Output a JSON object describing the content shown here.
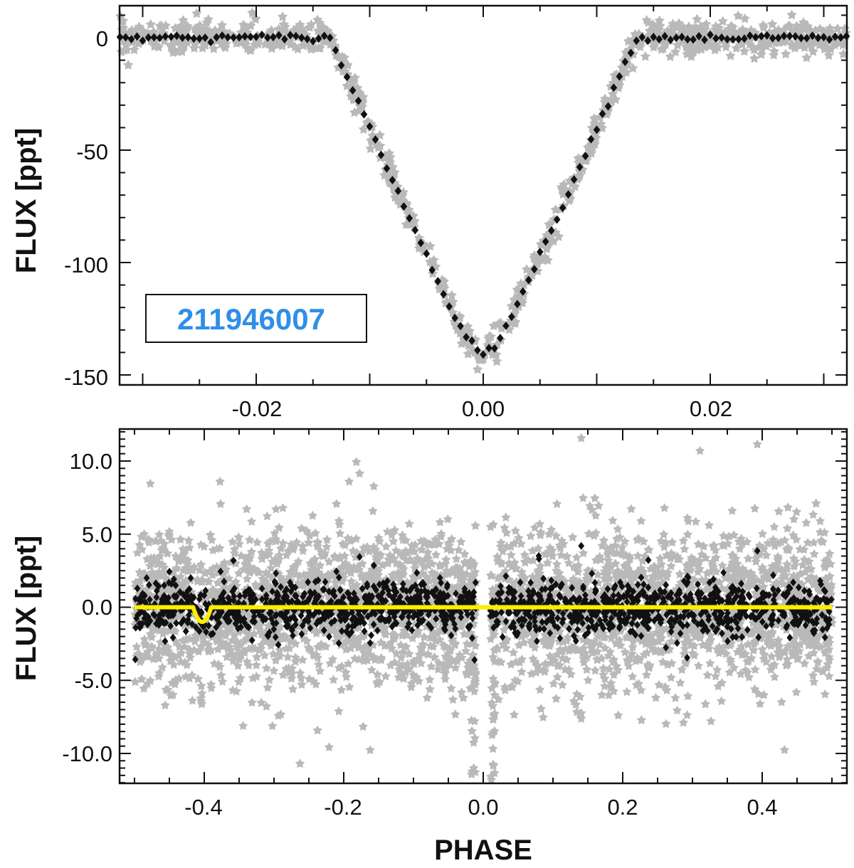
{
  "colors": {
    "background": "#ffffff",
    "axes": "#111111",
    "raw_points": "#b9b9b9",
    "binned_points": "#111111",
    "model_line": "#ffee00",
    "label_text": "#2f8fe8"
  },
  "chart_data": [
    {
      "type": "scatter",
      "name": "transit-zoom",
      "title": "",
      "xlabel": "",
      "ylabel": "FLUX [ppt]",
      "xlim": [
        -0.032,
        0.032
      ],
      "ylim": [
        -155,
        15
      ],
      "xticks": [
        -0.02,
        0.0,
        0.02
      ],
      "xtick_labels": [
        "-0.02",
        "0.00",
        "0.02"
      ],
      "yticks": [
        0,
        -50,
        -100,
        -150
      ],
      "ytick_labels": [
        "0",
        "-50",
        "-100",
        "-150"
      ],
      "annotation": "211946007",
      "transit_model": {
        "shape": "V-shaped transit",
        "depth_ppt": 140,
        "ingress_phase": -0.0135,
        "egress_phase": 0.0135,
        "phase_step_binned": 0.0005,
        "raw_scatter_ppt": 3.5
      },
      "series": [
        {
          "name": "raw flux",
          "marker": "grey star"
        },
        {
          "name": "binned flux",
          "marker": "black diamond"
        }
      ]
    },
    {
      "type": "scatter",
      "name": "full-phase",
      "title": "",
      "xlabel": "PHASE",
      "ylabel": "FLUX [ppt]",
      "xlim": [
        -0.52,
        0.52
      ],
      "ylim": [
        -12,
        12.2
      ],
      "xticks": [
        -0.4,
        -0.2,
        0.0,
        0.2,
        0.4
      ],
      "xtick_labels": [
        "-0.4",
        "-0.2",
        "0.0",
        "0.2",
        "0.4"
      ],
      "yticks": [
        10,
        5,
        0,
        -5,
        -10
      ],
      "ytick_labels": [
        "10.0",
        "5.0",
        "0.0",
        "-5.0",
        "-10.0"
      ],
      "transit_gap": [
        -0.01,
        0.01
      ],
      "raw_scatter_ppt": 2.6,
      "binned_scatter_ppt": 0.9,
      "secondary_eclipse": {
        "phase": -0.403,
        "depth_ppt": 1.0,
        "half_width": 0.013
      },
      "series": [
        {
          "name": "raw flux",
          "marker": "grey star"
        },
        {
          "name": "binned flux",
          "marker": "black diamond"
        },
        {
          "name": "model",
          "marker": "yellow line"
        }
      ]
    }
  ]
}
